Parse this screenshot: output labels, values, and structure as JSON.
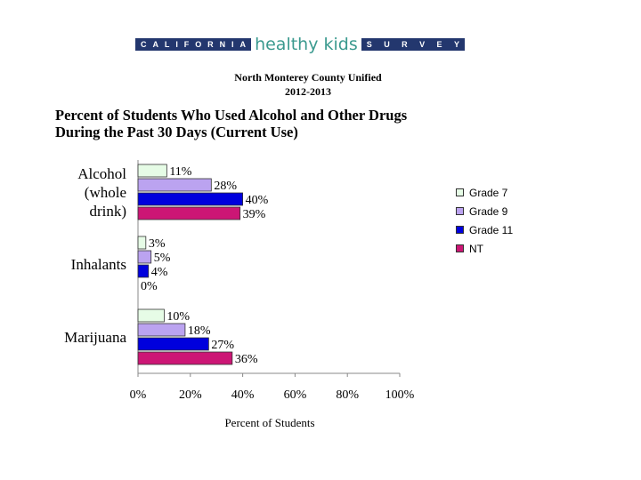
{
  "header": {
    "banner_left_letters": [
      "C",
      "A",
      "L",
      "I",
      "F",
      "O",
      "R",
      "N",
      "I",
      "A"
    ],
    "banner_script": "healthy kids",
    "banner_right_letters": [
      "S",
      "U",
      "R",
      "V",
      "E",
      "Y"
    ],
    "district": "North Monterey County Unified",
    "year": "2012-2013"
  },
  "chart_data": {
    "type": "bar",
    "orientation": "horizontal",
    "title": "Percent of Students Who Used Alcohol and Other Drugs During the Past 30 Days (Current Use)",
    "title_lines": [
      "Percent of Students Who Used Alcohol and Other Drugs",
      "During the Past 30 Days (Current Use)"
    ],
    "xlabel": "Percent of Students",
    "ylabel": "",
    "xlim": [
      0,
      100
    ],
    "x_ticks": [
      "0%",
      "20%",
      "40%",
      "60%",
      "80%",
      "100%"
    ],
    "categories": [
      {
        "name": "Alcohol (whole drink)",
        "lines": [
          "Alcohol",
          "(whole",
          "drink)"
        ]
      },
      {
        "name": "Inhalants",
        "lines": [
          "Inhalants"
        ]
      },
      {
        "name": "Marijuana",
        "lines": [
          "Marijuana"
        ]
      }
    ],
    "series": [
      {
        "name": "Grade 7",
        "color": "#e6fce6",
        "values": [
          11,
          3,
          10
        ],
        "labels": [
          "11%",
          "3%",
          "10%"
        ]
      },
      {
        "name": "Grade 9",
        "color": "#bba3f0",
        "values": [
          28,
          5,
          18
        ],
        "labels": [
          "28%",
          "5%",
          "18%"
        ]
      },
      {
        "name": "Grade 11",
        "color": "#0000dd",
        "values": [
          40,
          4,
          27
        ],
        "labels": [
          "40%",
          "4%",
          "27%"
        ]
      },
      {
        "name": "NT",
        "color": "#cc1675",
        "values": [
          39,
          0,
          36
        ],
        "labels": [
          "39%",
          "0%",
          "36%"
        ]
      }
    ],
    "legend_position": "right",
    "grid": false
  }
}
